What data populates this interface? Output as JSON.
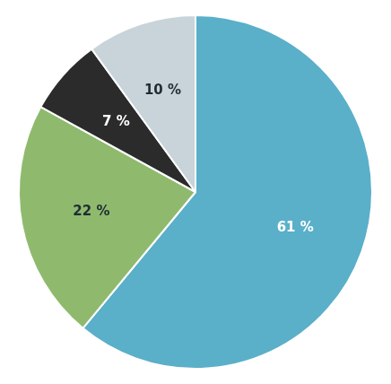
{
  "chart_data": {
    "type": "pie",
    "values": [
      61,
      22,
      7,
      10
    ],
    "value_labels": [
      "61 %",
      "22 %",
      "7 %",
      "10 %"
    ],
    "colors": [
      "#5aafc9",
      "#8fba6e",
      "#2b2b2b",
      "#c8d4da"
    ],
    "data_labels": true
  }
}
